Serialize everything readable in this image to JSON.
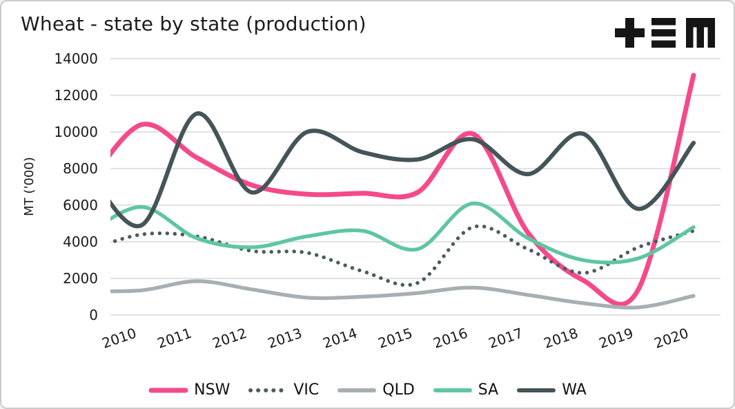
{
  "header": {
    "title": "Wheat - state by state (production)"
  },
  "logo": {
    "name": "tem-logo",
    "glyphs": [
      "plus",
      "triple-bar",
      "m-mark"
    ],
    "color": "#151515"
  },
  "axes": {
    "y_axis_title": "MT ('000)",
    "y_tick_labels": [
      "0",
      "2000",
      "4000",
      "6000",
      "8000",
      "10000",
      "12000",
      "14000"
    ],
    "x_tick_labels": [
      "2010",
      "2011",
      "2012",
      "2013",
      "2014",
      "2015",
      "2016",
      "2017",
      "2018",
      "2019",
      "2020"
    ]
  },
  "chart_data": {
    "type": "line",
    "title": "Wheat - state by state (production)",
    "xlabel": "",
    "ylabel": "MT ('000)",
    "ylim": [
      0,
      14000
    ],
    "y_ticks": [
      0,
      2000,
      4000,
      6000,
      8000,
      10000,
      12000,
      14000
    ],
    "grid": "horizontal",
    "legend_position": "bottom",
    "x": [
      2009,
      2010,
      2011,
      2012,
      2013,
      2014,
      2015,
      2016,
      2017,
      2018,
      2019,
      2020
    ],
    "x_tick_labels": [
      "2010",
      "2011",
      "2012",
      "2013",
      "2014",
      "2015",
      "2016",
      "2017",
      "2018",
      "2019",
      "2020"
    ],
    "first_point_clipped_at_left_edge": true,
    "series": [
      {
        "name": "NSW",
        "color": "#F5498A",
        "line_style": "solid",
        "values": [
          7000,
          10400,
          8600,
          7100,
          6600,
          6650,
          6700,
          9900,
          4500,
          1900,
          1400,
          13100
        ]
      },
      {
        "name": "VIC",
        "color": "#4C5B62",
        "line_style": "dotted",
        "values": [
          3500,
          4400,
          4300,
          3500,
          3400,
          2400,
          1750,
          4800,
          3600,
          2300,
          3700,
          4600
        ]
      },
      {
        "name": "QLD",
        "color": "#A8AFB2",
        "line_style": "solid",
        "values": [
          1300,
          1350,
          1850,
          1400,
          950,
          1000,
          1200,
          1500,
          1100,
          650,
          420,
          1050
        ]
      },
      {
        "name": "SA",
        "color": "#5EC6A0",
        "line_style": "solid",
        "values": [
          4400,
          5900,
          4200,
          3700,
          4300,
          4600,
          3600,
          6100,
          4200,
          3000,
          3100,
          4800
        ]
      },
      {
        "name": "WA",
        "color": "#455459",
        "line_style": "solid",
        "values": [
          8100,
          4900,
          11000,
          6700,
          10000,
          8900,
          8500,
          9600,
          7700,
          9900,
          5800,
          9400
        ]
      }
    ]
  },
  "colors": {
    "background": "#ffffff",
    "border": "#cbcbcb",
    "grid": "#d9d9d9",
    "text": "#1a1a1a"
  }
}
